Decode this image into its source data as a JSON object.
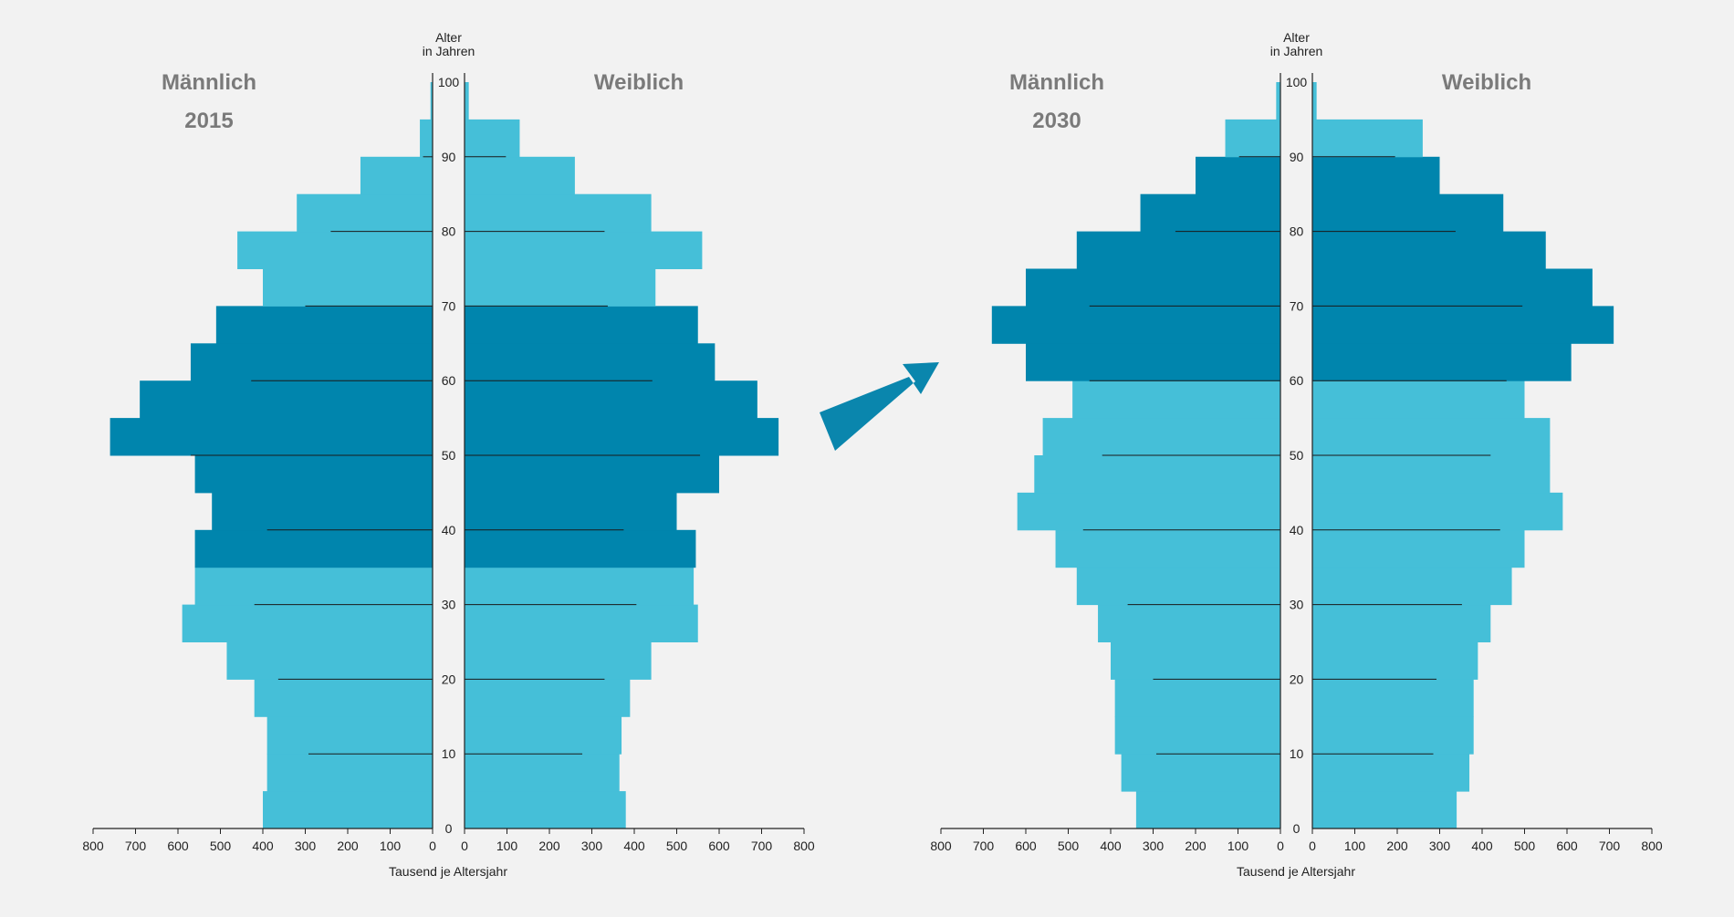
{
  "colors": {
    "light": "#45bfd8",
    "dark": "#0085ad",
    "axis": "#222222",
    "background": "#f2f2f2",
    "arrow": "#0a86ad"
  },
  "decor": {
    "arrow_icon": "arrow-right-icon"
  },
  "chart_data": [
    {
      "type": "bar",
      "subtype": "population-pyramid",
      "title": "2015",
      "left_label": "Männlich",
      "right_label": "Weiblich",
      "age_axis_title": [
        "Alter",
        "in Jahren"
      ],
      "age_ticks": [
        "0",
        "10",
        "20",
        "30",
        "40",
        "50",
        "60",
        "70",
        "80",
        "90",
        "100"
      ],
      "value_ticks": [
        "800",
        "700",
        "600",
        "500",
        "400",
        "300",
        "200",
        "100",
        "0"
      ],
      "value_ticks_right": [
        "0",
        "100",
        "200",
        "300",
        "400",
        "500",
        "600",
        "700",
        "800"
      ],
      "xlabel": "Tausend je Altersjahr",
      "xlim": [
        0,
        800
      ],
      "ylim": [
        0,
        100
      ],
      "highlight_age_range": [
        35,
        70
      ],
      "series": [
        {
          "name": "Männlich",
          "ages": [
            0,
            5,
            10,
            15,
            20,
            25,
            30,
            35,
            40,
            45,
            50,
            55,
            60,
            65,
            70,
            75,
            80,
            85,
            90,
            95
          ],
          "values": [
            400,
            390,
            390,
            420,
            485,
            590,
            560,
            560,
            520,
            560,
            760,
            690,
            570,
            510,
            400,
            460,
            320,
            170,
            30,
            5
          ]
        },
        {
          "name": "Weiblich",
          "ages": [
            0,
            5,
            10,
            15,
            20,
            25,
            30,
            35,
            40,
            45,
            50,
            55,
            60,
            65,
            70,
            75,
            80,
            85,
            90,
            95
          ],
          "values": [
            380,
            365,
            370,
            390,
            440,
            550,
            540,
            545,
            500,
            600,
            740,
            690,
            590,
            550,
            450,
            560,
            440,
            260,
            130,
            10
          ]
        }
      ]
    },
    {
      "type": "bar",
      "subtype": "population-pyramid",
      "title": "2030",
      "left_label": "Männlich",
      "right_label": "Weiblich",
      "age_axis_title": [
        "Alter",
        "in Jahren"
      ],
      "age_ticks": [
        "0",
        "10",
        "20",
        "30",
        "40",
        "50",
        "60",
        "70",
        "80",
        "90",
        "100"
      ],
      "value_ticks": [
        "800",
        "700",
        "600",
        "500",
        "400",
        "300",
        "200",
        "100",
        "0"
      ],
      "value_ticks_right": [
        "0",
        "100",
        "200",
        "300",
        "400",
        "500",
        "600",
        "700",
        "800"
      ],
      "xlabel": "Tausend je Altersjahr",
      "xlim": [
        0,
        800
      ],
      "ylim": [
        0,
        100
      ],
      "highlight_age_range": [
        60,
        90
      ],
      "series": [
        {
          "name": "Männlich",
          "ages": [
            0,
            5,
            10,
            15,
            20,
            25,
            30,
            35,
            40,
            45,
            50,
            55,
            60,
            65,
            70,
            75,
            80,
            85,
            90,
            95
          ],
          "values": [
            340,
            375,
            390,
            390,
            400,
            430,
            480,
            530,
            620,
            580,
            560,
            490,
            600,
            680,
            600,
            480,
            330,
            200,
            130,
            10
          ]
        },
        {
          "name": "Weiblich",
          "ages": [
            0,
            5,
            10,
            15,
            20,
            25,
            30,
            35,
            40,
            45,
            50,
            55,
            60,
            65,
            70,
            75,
            80,
            85,
            90,
            95
          ],
          "values": [
            340,
            370,
            380,
            380,
            390,
            420,
            470,
            500,
            590,
            560,
            560,
            500,
            610,
            710,
            660,
            550,
            450,
            300,
            260,
            10
          ]
        }
      ]
    }
  ]
}
